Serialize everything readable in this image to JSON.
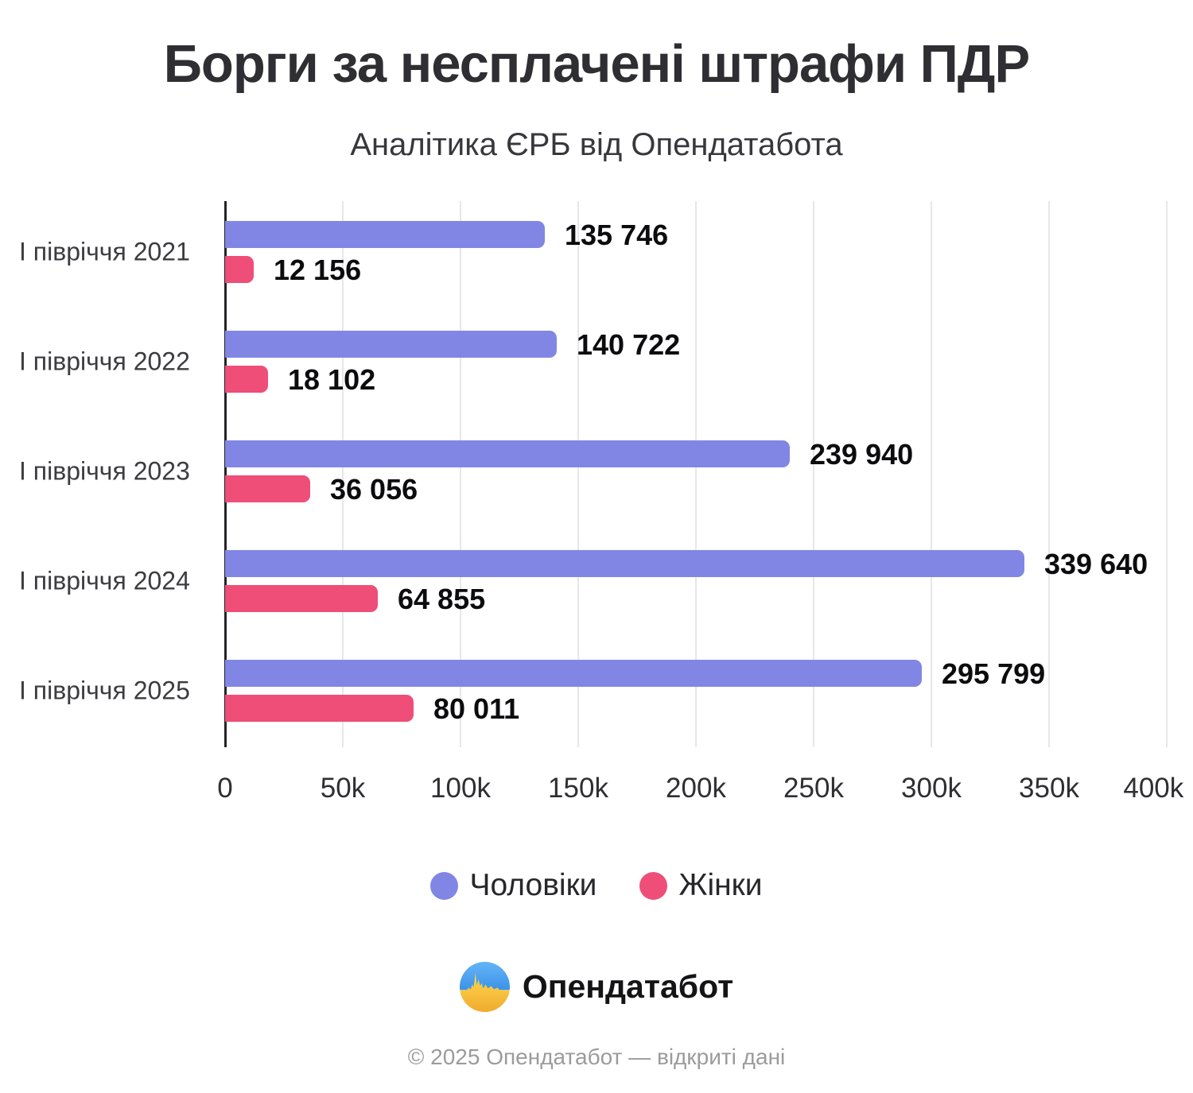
{
  "header": {
    "title": "Борги за несплачені штрафи ПДР",
    "subtitle": "Аналітика ЄРБ від Опендатабота"
  },
  "chart_data": {
    "type": "bar",
    "orientation": "horizontal",
    "title": "Борги за несплачені штрафи ПДР",
    "subtitle": "Аналітика ЄРБ від Опендатабота",
    "categories": [
      "І півріччя 2021",
      "І півріччя 2022",
      "І півріччя 2023",
      "І півріччя 2024",
      "І півріччя 2025"
    ],
    "series": [
      {
        "name": "Чоловіки",
        "color": "#8186E5",
        "values": [
          135746,
          140722,
          239940,
          339640,
          295799
        ],
        "value_labels": [
          "135 746",
          "140 722",
          "239 940",
          "339 640",
          "295 799"
        ]
      },
      {
        "name": "Жінки",
        "color": "#EE4E77",
        "values": [
          12156,
          18102,
          36056,
          64855,
          80011
        ],
        "value_labels": [
          "12 156",
          "18 102",
          "36 056",
          "64 855",
          "80 011"
        ]
      }
    ],
    "xlim": [
      0,
      400000
    ],
    "x_ticks": [
      {
        "value": 0,
        "label": "0"
      },
      {
        "value": 50000,
        "label": "50k"
      },
      {
        "value": 100000,
        "label": "100k"
      },
      {
        "value": 150000,
        "label": "150k"
      },
      {
        "value": 200000,
        "label": "200k"
      },
      {
        "value": 250000,
        "label": "250k"
      },
      {
        "value": 300000,
        "label": "300k"
      },
      {
        "value": 350000,
        "label": "350k"
      },
      {
        "value": 400000,
        "label": "400k"
      }
    ],
    "grid": true,
    "legend_position": "bottom"
  },
  "legend": {
    "items": [
      {
        "label": "Чоловіки",
        "color": "#8186E5"
      },
      {
        "label": "Жінки",
        "color": "#EE4E77"
      }
    ]
  },
  "brand": {
    "name": "Опендатабот",
    "logo_icon": "opendatabot-logo"
  },
  "footer": {
    "copyright": "© 2025 Опендатабот — відкриті дані"
  }
}
